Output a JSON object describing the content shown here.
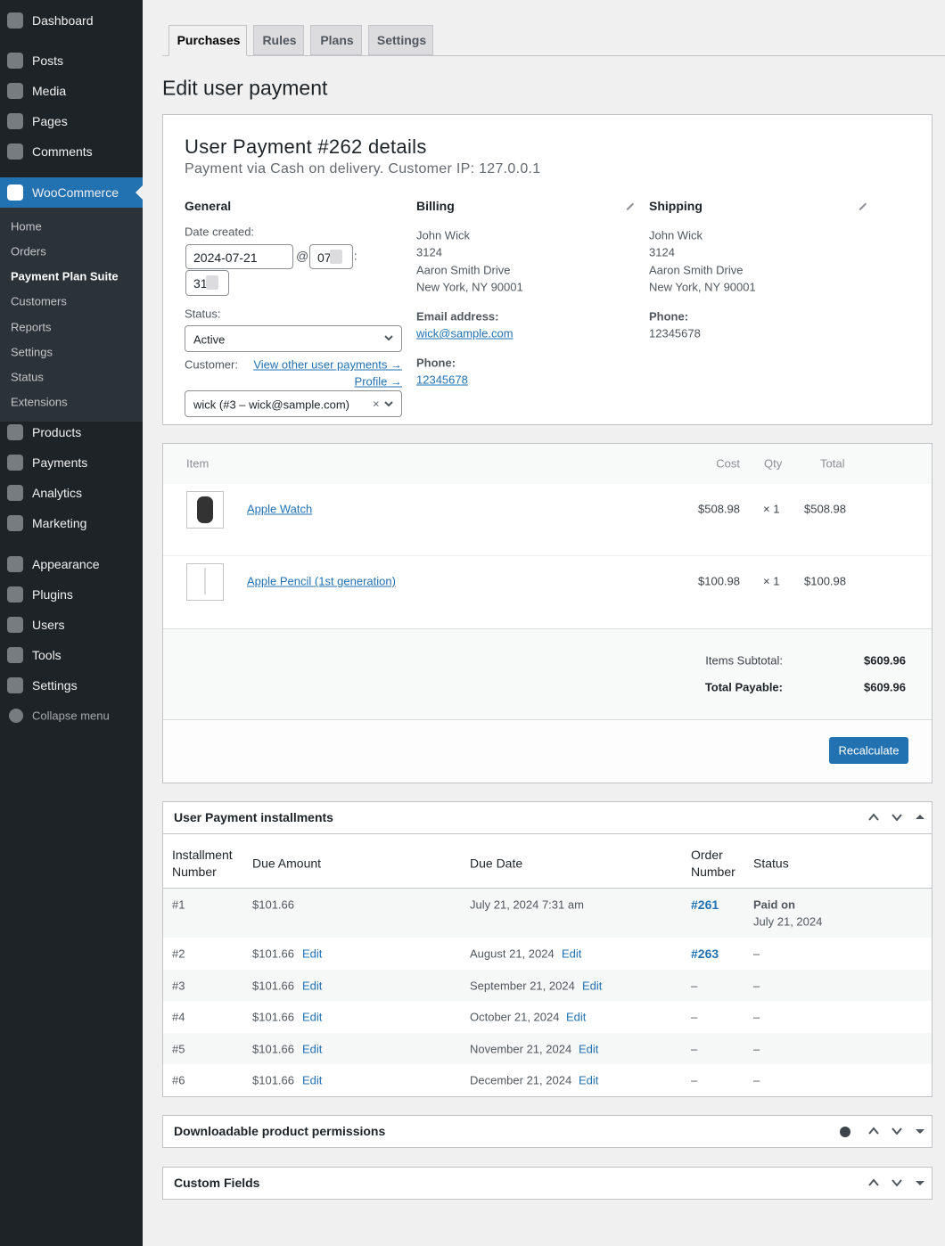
{
  "sidebar": {
    "menu": [
      "Dashboard",
      "Posts",
      "Media",
      "Pages",
      "Comments",
      "WooCommerce",
      "Products",
      "Payments",
      "Analytics",
      "Marketing",
      "Appearance",
      "Plugins",
      "Users",
      "Tools",
      "Settings"
    ],
    "submenu": [
      "Home",
      "Orders",
      "Payment Plan Suite",
      "Customers",
      "Reports",
      "Settings",
      "Status",
      "Extensions"
    ],
    "collapse": "Collapse menu"
  },
  "tabs": [
    "Purchases",
    "Rules",
    "Plans",
    "Settings"
  ],
  "page_title": "Edit user payment",
  "details": {
    "title": "User Payment #262 details",
    "subtitle": "Payment via Cash on delivery. Customer IP: 127.0.0.1",
    "general": {
      "heading": "General",
      "date_label": "Date created:",
      "date": "2024-07-21",
      "at": "@",
      "hour": "07",
      "colon": ":",
      "minute": "31",
      "status_label": "Status:",
      "status": "Active",
      "customer_label": "Customer:",
      "view_other": "View other user payments →",
      "profile": "Profile →",
      "customer": "wick (#3 – wick@sample.com)",
      "clear": "×"
    },
    "billing": {
      "heading": "Billing",
      "address": [
        "John Wick",
        "3124",
        "Aaron Smith Drive",
        "New York, NY 90001"
      ],
      "email_label": "Email address:",
      "email": "wick@sample.com",
      "phone_label": "Phone:",
      "phone": "12345678"
    },
    "shipping": {
      "heading": "Shipping",
      "address": [
        "John Wick",
        "3124",
        "Aaron Smith Drive",
        "New York, NY 90001"
      ],
      "phone_label": "Phone:",
      "phone": "12345678"
    }
  },
  "items": {
    "headers": [
      "Item",
      "Cost",
      "Qty",
      "Total"
    ],
    "rows": [
      {
        "name": "Apple Watch",
        "cost": "$508.98",
        "qty": "× 1",
        "total": "$508.98"
      },
      {
        "name": "Apple Pencil (1st generation)",
        "cost": "$100.98",
        "qty": "× 1",
        "total": "$100.98"
      }
    ],
    "subtotal_label": "Items Subtotal:",
    "subtotal": "$609.96",
    "total_label": "Total Payable:",
    "total": "$609.96",
    "button": "Recalculate"
  },
  "installments": {
    "title": "User Payment installments",
    "headers": [
      "Installment Number",
      "Due Amount",
      "Due Date",
      "Order Number",
      "Status"
    ],
    "rows": [
      {
        "number": "#1",
        "amount": "$101.66",
        "due_date": "July 21, 2024 7:31 am",
        "order": "#261",
        "status": "Paid on",
        "status_date": "July 21, 2024"
      },
      {
        "number": "#2",
        "amount": "$101.66",
        "due_date": "August 21, 2024",
        "order": "#263",
        "status": "–",
        "edit": "Edit"
      },
      {
        "number": "#3",
        "amount": "$101.66",
        "due_date": "September 21, 2024",
        "order": "–",
        "status": "–",
        "edit": "Edit"
      },
      {
        "number": "#4",
        "amount": "$101.66",
        "due_date": "October 21, 2024",
        "order": "–",
        "status": "–",
        "edit": "Edit"
      },
      {
        "number": "#5",
        "amount": "$101.66",
        "due_date": "November 21, 2024",
        "order": "–",
        "status": "–",
        "edit": "Edit"
      },
      {
        "number": "#6",
        "amount": "$101.66",
        "due_date": "December 21, 2024",
        "order": "–",
        "status": "–",
        "edit": "Edit"
      }
    ]
  },
  "panels": [
    "Downloadable product permissions",
    "Custom Fields"
  ]
}
